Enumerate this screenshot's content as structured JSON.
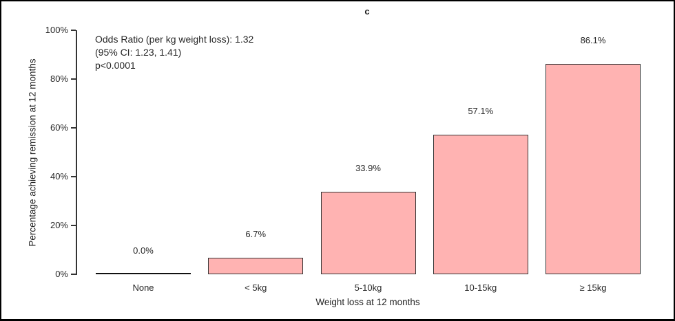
{
  "figure": {
    "panel_label": "c"
  },
  "chart_data": {
    "type": "bar",
    "title": "c",
    "categories": [
      "None",
      "< 5kg",
      "5-10kg",
      "10-15kg",
      "≥ 15kg"
    ],
    "values": [
      0.0,
      6.7,
      33.9,
      57.1,
      86.1
    ],
    "value_labels": [
      "0.0%",
      "6.7%",
      "33.9%",
      "57.1%",
      "86.1%"
    ],
    "xlabel": "Weight loss at 12 months",
    "ylabel": "Percentage achieving remission at 12 months",
    "ylim": [
      0,
      100
    ],
    "ytick_values": [
      0,
      20,
      40,
      60,
      80,
      100
    ],
    "ytick_labels": [
      "0%",
      "20%",
      "40%",
      "60%",
      "80%",
      "100%"
    ],
    "grid": false,
    "legend": "none",
    "annotation": {
      "lines": [
        "Odds Ratio (per kg weight loss): 1.32",
        "(95% CI: 1.23, 1.41)",
        "p<0.0001"
      ]
    },
    "colors": {
      "bar_fill": "#ffb3b2",
      "bar_border": "#333333",
      "axis": "#333333",
      "text": "#262626",
      "background": "#ffffff",
      "frame_border": "#000000"
    }
  }
}
